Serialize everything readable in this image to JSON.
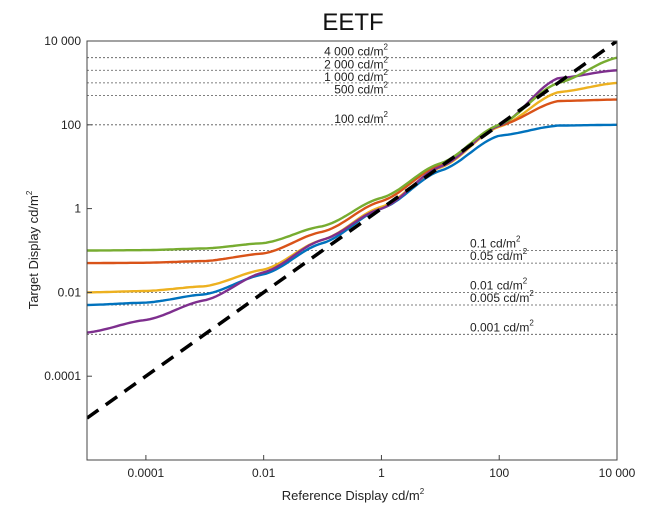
{
  "chart_data": {
    "type": "line",
    "title": "EETF",
    "xlabel": "Reference Display cd/m",
    "xlabel_sup": "2",
    "ylabel": "Target Display cd/m",
    "ylabel_sup": "2",
    "xscale": "log",
    "yscale": "log",
    "xlim": [
      1e-05,
      10000
    ],
    "ylim": [
      1e-06,
      10000
    ],
    "xticks": [
      {
        "value": 0.0001,
        "label": "0.0001"
      },
      {
        "value": 0.01,
        "label": "0.01"
      },
      {
        "value": 1,
        "label": "1"
      },
      {
        "value": 100,
        "label": "100"
      },
      {
        "value": 10000,
        "label": "10 000"
      }
    ],
    "yticks": [
      {
        "value": 0.0001,
        "label": "0.0001"
      },
      {
        "value": 0.01,
        "label": "0.01"
      },
      {
        "value": 1,
        "label": "1"
      },
      {
        "value": 100,
        "label": "100"
      },
      {
        "value": 10000,
        "label": "10 000"
      }
    ],
    "grid": false,
    "reference_lines": [
      {
        "value": 4000,
        "label": "4 000 cd/m",
        "sup": "2",
        "side": "top"
      },
      {
        "value": 2000,
        "label": "2 000 cd/m",
        "sup": "2",
        "side": "top"
      },
      {
        "value": 1000,
        "label": "1 000 cd/m",
        "sup": "2",
        "side": "top"
      },
      {
        "value": 500,
        "label": "500 cd/m",
        "sup": "2",
        "side": "top"
      },
      {
        "value": 100,
        "label": "100 cd/m",
        "sup": "2",
        "side": "top"
      },
      {
        "value": 0.1,
        "label": "0.1   cd/m",
        "sup": "2",
        "side": "bottom"
      },
      {
        "value": 0.05,
        "label": "0.05  cd/m",
        "sup": "2",
        "side": "bottom"
      },
      {
        "value": 0.01,
        "label": "0.01   cd/m",
        "sup": "2",
        "side": "bottom"
      },
      {
        "value": 0.005,
        "label": "0.005 cd/m",
        "sup": "2",
        "side": "bottom"
      },
      {
        "value": 0.001,
        "label": "0.001  cd/m",
        "sup": "2",
        "side": "bottom"
      }
    ],
    "identity_line": {
      "color": "#000000",
      "style": "dashed"
    },
    "series": [
      {
        "color": "#0072BD",
        "min": 0.005,
        "max": 100,
        "points": [
          [
            1e-05,
            0.005
          ],
          [
            0.0001,
            0.0057
          ],
          [
            0.001,
            0.009
          ],
          [
            0.01,
            0.027
          ],
          [
            0.1,
            0.15
          ],
          [
            1,
            1
          ],
          [
            10,
            8
          ],
          [
            100,
            55
          ],
          [
            1000,
            96
          ],
          [
            10000,
            100
          ]
        ]
      },
      {
        "color": "#EDB120",
        "min": 0.01,
        "max": 1000,
        "points": [
          [
            1e-05,
            0.01
          ],
          [
            0.0001,
            0.0108
          ],
          [
            0.001,
            0.014
          ],
          [
            0.01,
            0.035
          ],
          [
            0.1,
            0.18
          ],
          [
            1,
            1.1
          ],
          [
            10,
            9.5
          ],
          [
            100,
            90
          ],
          [
            1000,
            600
          ],
          [
            10000,
            1000
          ]
        ]
      },
      {
        "color": "#D95319",
        "min": 0.05,
        "max": 400,
        "points": [
          [
            1e-05,
            0.05
          ],
          [
            0.0001,
            0.051
          ],
          [
            0.001,
            0.056
          ],
          [
            0.01,
            0.085
          ],
          [
            0.1,
            0.28
          ],
          [
            1,
            1.5
          ],
          [
            10,
            11
          ],
          [
            100,
            95
          ],
          [
            1000,
            370
          ],
          [
            10000,
            400
          ]
        ]
      },
      {
        "color": "#7E2F8E",
        "min": 0.001,
        "max": 2000,
        "points": [
          [
            1e-05,
            0.0011
          ],
          [
            0.0001,
            0.0022
          ],
          [
            0.001,
            0.0065
          ],
          [
            0.01,
            0.03
          ],
          [
            0.1,
            0.18
          ],
          [
            1,
            1
          ],
          [
            10,
            10
          ],
          [
            100,
            95
          ],
          [
            1000,
            1300
          ],
          [
            10000,
            2000
          ]
        ]
      },
      {
        "color": "#77AC30",
        "min": 0.1,
        "max": 4000,
        "points": [
          [
            1e-05,
            0.1
          ],
          [
            0.0001,
            0.102
          ],
          [
            0.001,
            0.112
          ],
          [
            0.01,
            0.15
          ],
          [
            0.1,
            0.38
          ],
          [
            1,
            1.8
          ],
          [
            10,
            12
          ],
          [
            100,
            100
          ],
          [
            1000,
            1000
          ],
          [
            10000,
            4000
          ]
        ]
      }
    ]
  }
}
